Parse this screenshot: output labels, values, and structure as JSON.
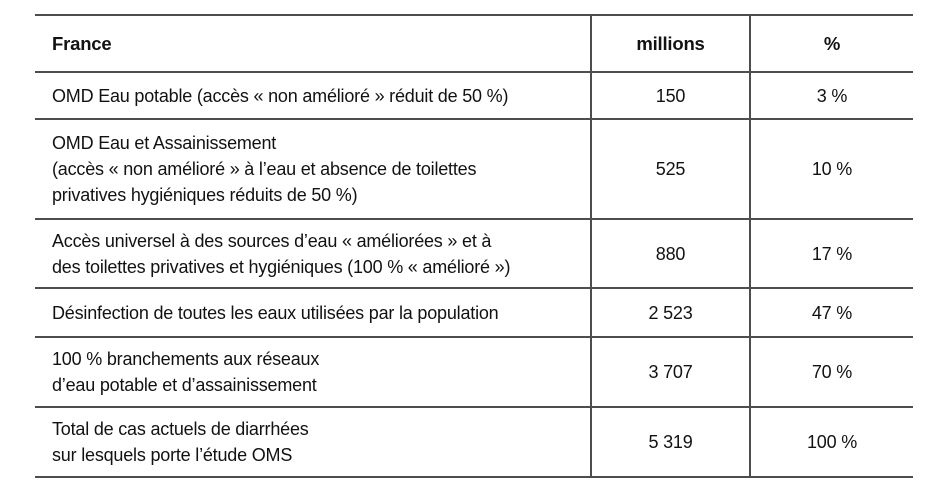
{
  "table": {
    "border_color": "#4d4d4d",
    "text_color": "#121212",
    "header": {
      "france": "France",
      "millions": "millions",
      "percent": "%"
    },
    "rows": [
      {
        "label_lines": [
          "OMD Eau potable (accès « non amélioré » réduit de 50 %)"
        ],
        "millions": "150",
        "percent": "3 %"
      },
      {
        "label_lines": [
          "OMD Eau et Assainissement",
          "(accès « non amélioré » à l’eau et absence de toilettes",
          "privatives hygiéniques réduits de 50 %)"
        ],
        "millions": "525",
        "percent": "10 %"
      },
      {
        "label_lines": [
          "Accès universel à des sources d’eau « améliorées » et à",
          "des toilettes privatives et hygiéniques (100 % « amélioré »)"
        ],
        "millions": "880",
        "percent": "17 %"
      },
      {
        "label_lines": [
          "Désinfection de toutes les eaux utilisées par la population"
        ],
        "millions": "2 523",
        "percent": "47 %"
      },
      {
        "label_lines": [
          "100 % branchements aux réseaux",
          "d’eau potable et d’assainissement"
        ],
        "millions": "3 707",
        "percent": "70 %"
      },
      {
        "label_lines": [
          "Total de cas actuels de diarrhées",
          "sur lesquels porte l’étude OMS"
        ],
        "millions": "5 319",
        "percent": "100 %"
      }
    ]
  },
  "chart_data": {
    "type": "table",
    "title": "France",
    "columns": [
      "France",
      "millions",
      "%"
    ],
    "rows": [
      [
        "OMD Eau potable (accès « non amélioré » réduit de 50 %)",
        150,
        "3 %"
      ],
      [
        "OMD Eau et Assainissement (accès « non amélioré » à l’eau et absence de toilettes privatives hygiéniques réduits de 50 %)",
        525,
        "10 %"
      ],
      [
        "Accès universel à des sources d’eau « améliorées » et à des toilettes privatives et hygiéniques (100 % « amélioré »)",
        880,
        "17 %"
      ],
      [
        "Désinfection de toutes les eaux utilisées par la population",
        2523,
        "47 %"
      ],
      [
        "100 % branchements aux réseaux d’eau potable et d’assainissement",
        3707,
        "70 %"
      ],
      [
        "Total de cas actuels de diarrhées sur lesquels porte l’étude OMS",
        5319,
        "100 %"
      ]
    ]
  }
}
